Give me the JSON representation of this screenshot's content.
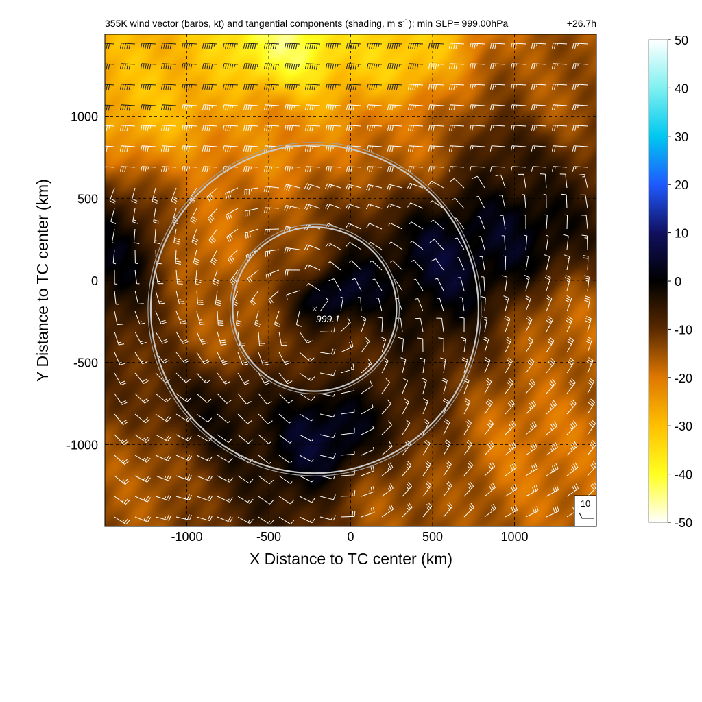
{
  "title": {
    "main_pre": "355K wind vector (barbs, kt) and tangential components (shading, m s",
    "main_sup": "-1",
    "main_post": "); min SLP= 999.00hPa",
    "lead_time": "+26.7h"
  },
  "axes": {
    "xlabel": "X Distance to TC center (km)",
    "ylabel": "Y Distance to TC center (km)",
    "xlim": [
      -1500,
      1500
    ],
    "ylim": [
      -1500,
      1500
    ],
    "xticks": [
      -1000,
      -500,
      0,
      500,
      1000
    ],
    "yticks": [
      -1000,
      -500,
      0,
      500,
      1000
    ],
    "grid": "dashed",
    "center_marker": "×",
    "center_slp_label": "999.1",
    "center_position": [
      -220,
      -175
    ]
  },
  "rings": [
    {
      "radius_km": 500,
      "center": [
        -220,
        -175
      ]
    },
    {
      "radius_km": 1000,
      "center": [
        -220,
        -175
      ]
    }
  ],
  "reference_barb": {
    "label": "10"
  },
  "colorbar": {
    "ticks": [
      50,
      40,
      30,
      20,
      10,
      0,
      -10,
      -20,
      -30,
      -40,
      -50
    ],
    "stops": [
      {
        "value": 50,
        "color": "#ffffff"
      },
      {
        "value": 40,
        "color": "#7ff0f0"
      },
      {
        "value": 30,
        "color": "#00c8f0"
      },
      {
        "value": 20,
        "color": "#1e5aff"
      },
      {
        "value": 10,
        "color": "#101060"
      },
      {
        "value": 0,
        "color": "#000000"
      },
      {
        "value": -10,
        "color": "#5a2a00"
      },
      {
        "value": -20,
        "color": "#e07800"
      },
      {
        "value": -30,
        "color": "#ffc000"
      },
      {
        "value": -40,
        "color": "#ffff20"
      },
      {
        "value": -50,
        "color": "#ffffff"
      }
    ]
  },
  "chart_data": {
    "type": "heatmap",
    "title": "355K wind vector (barbs, kt) and tangential components (shading, m s-1); min SLP= 999.00hPa  +26.7h",
    "xlabel": "X Distance to TC center (km)",
    "ylabel": "Y Distance to TC center (km)",
    "xlim": [
      -1500,
      1500
    ],
    "ylim": [
      -1500,
      1500
    ],
    "colorbar_range": [
      -50,
      50
    ],
    "colorbar_ticks": [
      -50,
      -40,
      -30,
      -20,
      -10,
      0,
      10,
      20,
      30,
      40,
      50
    ],
    "min_slp_hPa": 999.0,
    "center_slp_label": "999.1",
    "rings_km": [
      500,
      1000
    ],
    "features": [
      {
        "name": "jet",
        "x": -400,
        "y": 1450,
        "value": -44
      },
      {
        "name": "jet",
        "x": 300,
        "y": 1400,
        "value": -34
      },
      {
        "name": "jet",
        "x": -1200,
        "y": 1150,
        "value": -30
      },
      {
        "name": "band",
        "x": -500,
        "y": 900,
        "value": -22
      },
      {
        "name": "band",
        "x": 400,
        "y": 850,
        "value": -18
      },
      {
        "name": "band",
        "x": 1200,
        "y": 1050,
        "value": -16
      },
      {
        "name": "west-arc",
        "x": -900,
        "y": 200,
        "value": -20
      },
      {
        "name": "west-arc",
        "x": -700,
        "y": -300,
        "value": -18
      },
      {
        "name": "inner",
        "x": -300,
        "y": 100,
        "value": -18
      },
      {
        "name": "inner",
        "x": -100,
        "y": -350,
        "value": -14
      },
      {
        "name": "east",
        "x": 1300,
        "y": -300,
        "value": -18
      },
      {
        "name": "southeast",
        "x": 1100,
        "y": -1000,
        "value": -20
      },
      {
        "name": "south",
        "x": 200,
        "y": -1350,
        "value": -16
      },
      {
        "name": "southwest",
        "x": -1250,
        "y": -1200,
        "value": -16
      },
      {
        "name": "core",
        "x": -120,
        "y": -100,
        "value": 14
      },
      {
        "name": "east-pos",
        "x": 600,
        "y": 150,
        "value": 5
      },
      {
        "name": "east-pos",
        "x": 1000,
        "y": 300,
        "value": 3
      },
      {
        "name": "south-pos",
        "x": -150,
        "y": -950,
        "value": 6
      },
      {
        "name": "west-pos",
        "x": -1400,
        "y": 150,
        "value": 1
      },
      {
        "name": "dark-band",
        "x": -800,
        "y": -800,
        "value": -2
      },
      {
        "name": "dark-band",
        "x": 1000,
        "y": 750,
        "value": -4
      }
    ]
  }
}
